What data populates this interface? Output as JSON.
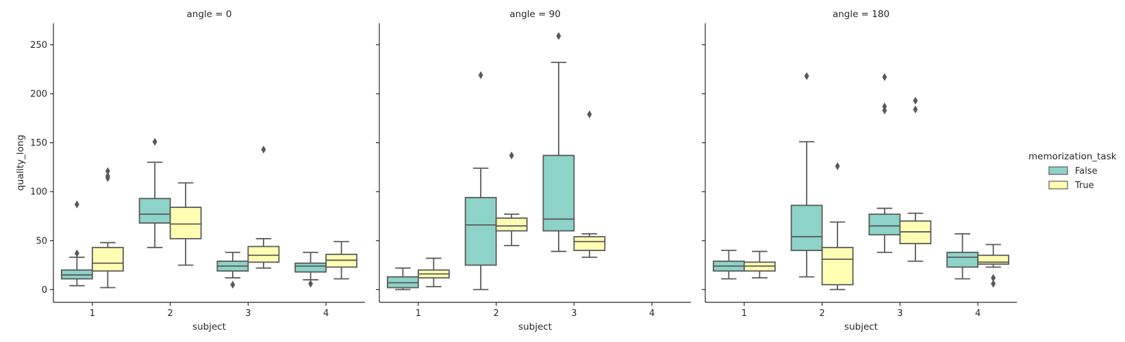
{
  "chart_data": {
    "type": "box",
    "facet_by": "angle",
    "panels": [
      {
        "title": "angle = 0",
        "xlabel": "subject",
        "ylabel": "quality_long",
        "groups": [
          {
            "subject": "1",
            "hue": "False",
            "whisker_low": 4,
            "q1": 11,
            "median": 15,
            "q3": 20,
            "whisker_high": 33,
            "outliers": [
              37,
              87
            ]
          },
          {
            "subject": "1",
            "hue": "True",
            "whisker_low": 2,
            "q1": 19,
            "median": 27,
            "q3": 43,
            "whisker_high": 48,
            "outliers": [
              114,
              116,
              121
            ]
          },
          {
            "subject": "2",
            "hue": "False",
            "whisker_low": 43,
            "q1": 68,
            "median": 77,
            "q3": 93,
            "whisker_high": 130,
            "outliers": [
              151
            ]
          },
          {
            "subject": "2",
            "hue": "True",
            "whisker_low": 25,
            "q1": 52,
            "median": 67,
            "q3": 84,
            "whisker_high": 109,
            "outliers": []
          },
          {
            "subject": "3",
            "hue": "False",
            "whisker_low": 12,
            "q1": 19,
            "median": 24,
            "q3": 29,
            "whisker_high": 38,
            "outliers": [
              5
            ]
          },
          {
            "subject": "3",
            "hue": "True",
            "whisker_low": 22,
            "q1": 28,
            "median": 35,
            "q3": 44,
            "whisker_high": 52,
            "outliers": [
              143
            ]
          },
          {
            "subject": "4",
            "hue": "False",
            "whisker_low": 10,
            "q1": 18,
            "median": 24,
            "q3": 27,
            "whisker_high": 38,
            "outliers": [
              6
            ]
          },
          {
            "subject": "4",
            "hue": "True",
            "whisker_low": 11,
            "q1": 23,
            "median": 30,
            "q3": 36,
            "whisker_high": 49,
            "outliers": []
          }
        ]
      },
      {
        "title": "angle = 90",
        "xlabel": "subject",
        "ylabel": "",
        "groups": [
          {
            "subject": "1",
            "hue": "False",
            "whisker_low": 0,
            "q1": 2,
            "median": 7,
            "q3": 13,
            "whisker_high": 22,
            "outliers": []
          },
          {
            "subject": "1",
            "hue": "True",
            "whisker_low": 3,
            "q1": 12,
            "median": 16,
            "q3": 20,
            "whisker_high": 32,
            "outliers": []
          },
          {
            "subject": "2",
            "hue": "False",
            "whisker_low": 0,
            "q1": 25,
            "median": 66,
            "q3": 94,
            "whisker_high": 124,
            "outliers": [
              219
            ]
          },
          {
            "subject": "2",
            "hue": "True",
            "whisker_low": 45,
            "q1": 60,
            "median": 65,
            "q3": 73,
            "whisker_high": 77,
            "outliers": [
              137
            ]
          },
          {
            "subject": "3",
            "hue": "False",
            "whisker_low": 39,
            "q1": 60,
            "median": 72,
            "q3": 137,
            "whisker_high": 232,
            "outliers": [
              259
            ]
          },
          {
            "subject": "3",
            "hue": "True",
            "whisker_low": 33,
            "q1": 40,
            "median": 49,
            "q3": 54,
            "whisker_high": 57,
            "outliers": [
              179
            ]
          }
        ]
      },
      {
        "title": "angle = 180",
        "xlabel": "subject",
        "ylabel": "",
        "groups": [
          {
            "subject": "1",
            "hue": "False",
            "whisker_low": 11,
            "q1": 19,
            "median": 24,
            "q3": 29,
            "whisker_high": 40,
            "outliers": []
          },
          {
            "subject": "1",
            "hue": "True",
            "whisker_low": 12,
            "q1": 19,
            "median": 24,
            "q3": 28,
            "whisker_high": 39,
            "outliers": []
          },
          {
            "subject": "2",
            "hue": "False",
            "whisker_low": 13,
            "q1": 40,
            "median": 54,
            "q3": 86,
            "whisker_high": 151,
            "outliers": [
              218
            ]
          },
          {
            "subject": "2",
            "hue": "True",
            "whisker_low": 0,
            "q1": 5,
            "median": 31,
            "q3": 43,
            "whisker_high": 69,
            "outliers": [
              126
            ]
          },
          {
            "subject": "3",
            "hue": "False",
            "whisker_low": 38,
            "q1": 56,
            "median": 65,
            "q3": 77,
            "whisker_high": 83,
            "outliers": [
              183,
              187,
              217
            ]
          },
          {
            "subject": "3",
            "hue": "True",
            "whisker_low": 29,
            "q1": 47,
            "median": 59,
            "q3": 70,
            "whisker_high": 78,
            "outliers": [
              184,
              193
            ]
          },
          {
            "subject": "4",
            "hue": "False",
            "whisker_low": 11,
            "q1": 23,
            "median": 33,
            "q3": 38,
            "whisker_high": 57,
            "outliers": []
          },
          {
            "subject": "4",
            "hue": "True",
            "whisker_low": 23,
            "q1": 26,
            "median": 28,
            "q3": 35,
            "whisker_high": 46,
            "outliers": [
              6,
              12
            ]
          }
        ]
      }
    ],
    "categories": [
      "1",
      "2",
      "3",
      "4"
    ],
    "yticks": [
      0,
      50,
      100,
      150,
      200,
      250
    ],
    "ylim": [
      -13,
      272
    ],
    "legend": {
      "title": "memorization_task",
      "entries": [
        "False",
        "True"
      ],
      "placement": "right"
    },
    "colors": {
      "False": "#8dd3c7",
      "True": "#ffffb3",
      "line": "#595959",
      "axis": "#262626"
    },
    "grid": false
  }
}
